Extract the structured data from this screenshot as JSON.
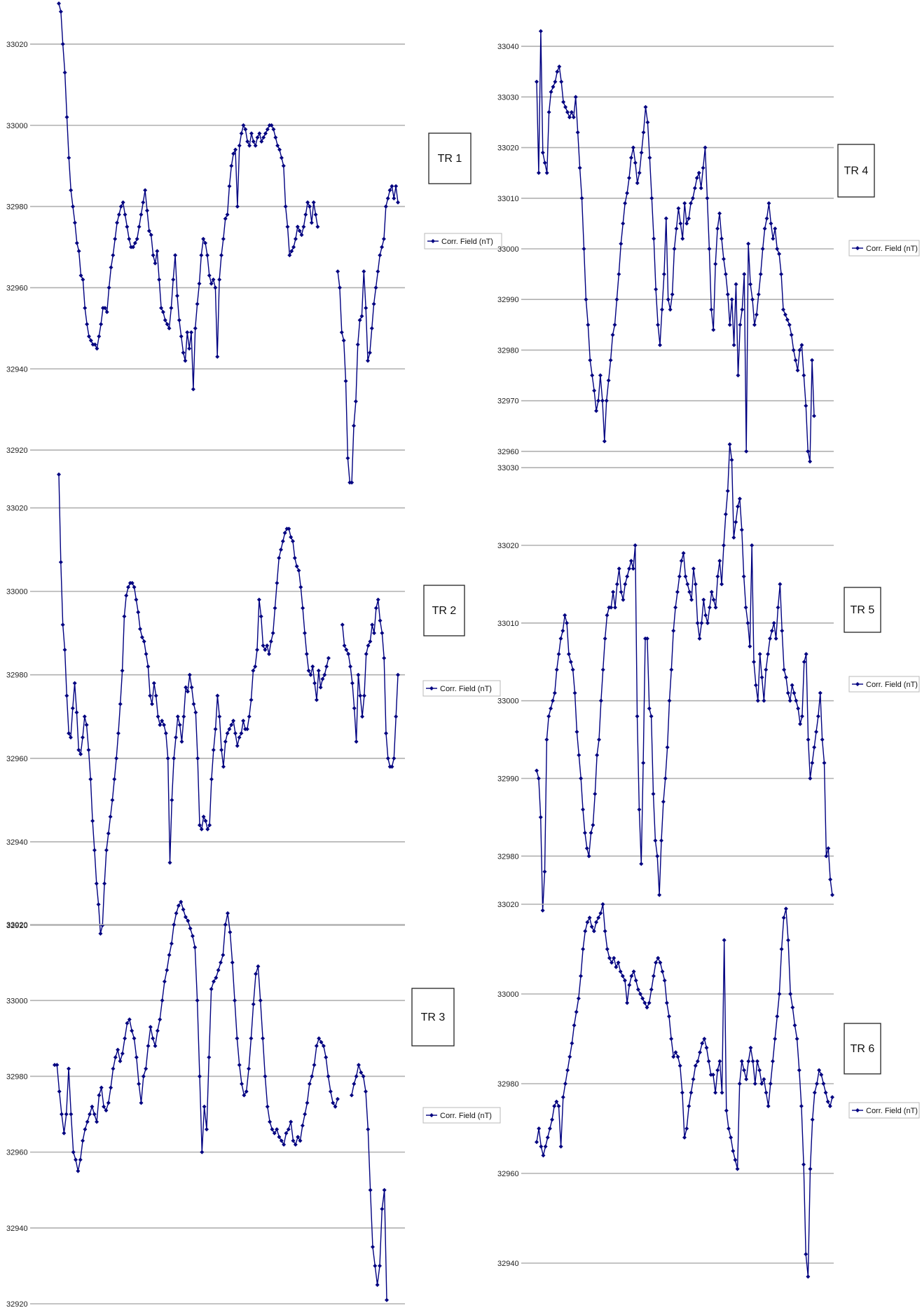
{
  "colors": {
    "series": "#000080",
    "grid": "#b0b0b0"
  },
  "chart_data": [
    {
      "type": "line",
      "title": "TR 1",
      "legend": "Corr. Field (nT)",
      "grid": true,
      "legend_placement": "right",
      "ylim": [
        32910,
        33030
      ],
      "yticks": [
        32920,
        32940,
        32960,
        32980,
        33000,
        33020
      ],
      "series": [
        {
          "name": "Corr. Field (nT)",
          "values": [
            33030,
            33028,
            33020,
            33013,
            33002,
            32992,
            32984,
            32980,
            32976,
            32971,
            32969,
            32963,
            32962,
            32955,
            32951,
            32948,
            32947,
            32946,
            32946,
            32945,
            32948,
            32951,
            32955,
            32955,
            32954,
            32960,
            32965,
            32968,
            32972,
            32976,
            32978,
            32980,
            32981,
            32978,
            32975,
            32972,
            32970,
            32970,
            32971,
            32972,
            32975,
            32978,
            32981,
            32984,
            32979,
            32974,
            32973,
            32968,
            32966,
            32969,
            32962,
            32955,
            32954,
            32952,
            32951,
            32950,
            32955,
            32962,
            32968,
            32958,
            32952,
            32948,
            32944,
            32942,
            32949,
            32945,
            32949,
            32935,
            32950,
            32956,
            32961,
            32968,
            32972,
            32971,
            32968,
            32963,
            32961,
            32962,
            32960,
            32943,
            32962,
            32968,
            32972,
            32977,
            32978,
            32985,
            32990,
            32993,
            32994,
            32980,
            32995,
            32998,
            33000,
            32999,
            32996,
            32995,
            32998,
            32996,
            32995,
            32997,
            32998,
            32996,
            32997,
            32998,
            32999,
            33000,
            33000,
            32999,
            32997,
            32995,
            32994,
            32992,
            32990,
            32980,
            32975,
            32968,
            32969,
            32970,
            32972,
            32975,
            32974,
            32973,
            32975,
            32978,
            32981,
            32980,
            32976,
            32981,
            32978,
            32975,
            null,
            null,
            null,
            null,
            null,
            null,
            null,
            null,
            null,
            32964,
            32960,
            32949,
            32947,
            32937,
            32918,
            32912,
            32912,
            32926,
            32932,
            32946,
            32952,
            32953,
            32964,
            32955,
            32942,
            32944,
            32950,
            32956,
            32960,
            32964,
            32968,
            32970,
            32972,
            32980,
            32982,
            32984,
            32985,
            32982,
            32985,
            32981
          ]
        }
      ]
    },
    {
      "type": "line",
      "title": "TR 2",
      "legend": "Corr. Field (nT)",
      "grid": true,
      "legend_placement": "right",
      "ylim": [
        32920,
        33030
      ],
      "yticks": [
        32920,
        32940,
        32960,
        32980,
        33000,
        33020
      ],
      "series": [
        {
          "name": "Corr. Field (nT)",
          "values": [
            33028,
            33007,
            32992,
            32986,
            32975,
            32966,
            32965,
            32972,
            32978,
            32971,
            32962,
            32961,
            32965,
            32970,
            32968,
            32962,
            32955,
            32945,
            32938,
            32930,
            32925,
            32918,
            32920,
            32930,
            32938,
            32942,
            32946,
            32950,
            32955,
            32960,
            32966,
            32973,
            32981,
            32994,
            32999,
            33001,
            33002,
            33002,
            33001,
            32998,
            32995,
            32991,
            32989,
            32988,
            32985,
            32982,
            32975,
            32973,
            32978,
            32975,
            32970,
            32968,
            32969,
            32968,
            32966,
            32960,
            32935,
            32950,
            32960,
            32965,
            32970,
            32968,
            32964,
            32970,
            32977,
            32976,
            32980,
            32977,
            32973,
            32971,
            32960,
            32944,
            32943,
            32946,
            32945,
            32943,
            32944,
            32955,
            32962,
            32967,
            32975,
            32970,
            32962,
            32958,
            32964,
            32966,
            32967,
            32968,
            32969,
            32966,
            32963,
            32965,
            32966,
            32969,
            32967,
            32967,
            32970,
            32974,
            32981,
            32982,
            32986,
            32998,
            32994,
            32987,
            32986,
            32987,
            32985,
            32988,
            32990,
            32996,
            33002,
            33008,
            33010,
            33012,
            33014,
            33015,
            33015,
            33013,
            33012,
            33008,
            33006,
            33005,
            33001,
            32996,
            32990,
            32985,
            32981,
            32980,
            32982,
            32978,
            32974,
            32981,
            32977,
            32979,
            32980,
            32982,
            32984,
            null,
            null,
            null,
            null,
            null,
            null,
            32992,
            32987,
            32986,
            32985,
            32982,
            32978,
            32972,
            32964,
            32980,
            32975,
            32970,
            32975,
            32985,
            32987,
            32988,
            32992,
            32990,
            32996,
            32998,
            32993,
            32990,
            32984,
            32966,
            32960,
            32958,
            32958,
            32960,
            32970,
            32980
          ]
        }
      ]
    },
    {
      "type": "line",
      "title": "TR 3",
      "legend": "Corr. Field (nT)",
      "grid": true,
      "legend_placement": "right",
      "ylim": [
        32920,
        33030
      ],
      "yticks": [
        32920,
        32940,
        32960,
        32980,
        33000,
        33020
      ],
      "series": [
        {
          "name": "Corr. Field (nT)",
          "values": [
            32983,
            32983,
            32976,
            32970,
            32965,
            32970,
            32982,
            32970,
            32960,
            32958,
            32955,
            32958,
            32963,
            32966,
            32968,
            32970,
            32972,
            32970,
            32968,
            32975,
            32977,
            32972,
            32971,
            32973,
            32977,
            32982,
            32985,
            32987,
            32984,
            32986,
            32990,
            32994,
            32995,
            32992,
            32990,
            32985,
            32978,
            32973,
            32980,
            32982,
            32988,
            32993,
            32990,
            32988,
            32992,
            32995,
            33000,
            33005,
            33008,
            33012,
            33015,
            33020,
            33023,
            33025,
            33026,
            33024,
            33022,
            33021,
            33019,
            33017,
            33014,
            33000,
            32980,
            32960,
            32972,
            32966,
            32985,
            33003,
            33005,
            33006,
            33008,
            33010,
            33012,
            33020,
            33023,
            33018,
            33010,
            33000,
            32990,
            32983,
            32978,
            32975,
            32976,
            32982,
            32990,
            32999,
            33007,
            33009,
            33000,
            32990,
            32980,
            32972,
            32968,
            32966,
            32965,
            32966,
            32964,
            32963,
            32962,
            32965,
            32966,
            32968,
            32963,
            32962,
            32964,
            32963,
            32967,
            32970,
            32973,
            32978,
            32980,
            32983,
            32988,
            32990,
            32989,
            32988,
            32985,
            32980,
            32976,
            32973,
            32972,
            32974,
            null,
            null,
            null,
            null,
            null,
            32975,
            32978,
            32980,
            32983,
            32981,
            32980,
            32976,
            32966,
            32950,
            32935,
            32930,
            32925,
            32930,
            32945,
            32950,
            32921
          ]
        }
      ]
    },
    {
      "type": "line",
      "title": "TR 4",
      "legend": "Corr. Field (nT)",
      "grid": true,
      "legend_placement": "right",
      "ylim": [
        32955,
        33045
      ],
      "yticks": [
        32960,
        32970,
        32980,
        32990,
        33000,
        33010,
        33020,
        33030,
        33040
      ],
      "series": [
        {
          "name": "Corr. Field (nT)",
          "values": [
            33033,
            33015,
            33043,
            33019,
            33017,
            33015,
            33027,
            33031,
            33032,
            33033,
            33035,
            33036,
            33033,
            33029,
            33028,
            33027,
            33026,
            33027,
            33026,
            33030,
            33023,
            33016,
            33010,
            33000,
            32990,
            32985,
            32978,
            32975,
            32972,
            32968,
            32970,
            32975,
            32970,
            32962,
            32970,
            32974,
            32978,
            32983,
            32985,
            32990,
            32995,
            33001,
            33005,
            33009,
            33011,
            33014,
            33018,
            33020,
            33017,
            33013,
            33015,
            33019,
            33023,
            33028,
            33025,
            33018,
            33010,
            33002,
            32992,
            32985,
            32981,
            32988,
            32995,
            33006,
            32990,
            32988,
            32991,
            33000,
            33004,
            33008,
            33005,
            33002,
            33009,
            33005,
            33006,
            33009,
            33010,
            33012,
            33014,
            33015,
            33012,
            33016,
            33020,
            33010,
            33000,
            32988,
            32984,
            32997,
            33004,
            33007,
            33002,
            32998,
            32995,
            32991,
            32985,
            32990,
            32981,
            32993,
            32975,
            32985,
            32988,
            32995,
            32960,
            33001,
            32993,
            32990,
            32985,
            32987,
            32991,
            32995,
            33000,
            33004,
            33006,
            33009,
            33005,
            33002,
            33004,
            33000,
            32999,
            32995,
            32988,
            32987,
            32986,
            32985,
            32983,
            32980,
            32978,
            32976,
            32980,
            32981,
            32975,
            32969,
            32960,
            32958,
            32978,
            32967
          ]
        }
      ]
    },
    {
      "type": "line",
      "title": "TR 5",
      "legend": "Corr. Field (nT)",
      "grid": true,
      "legend_placement": "right",
      "ylim": [
        32972,
        33032
      ],
      "yticks": [
        32980,
        32990,
        33000,
        33010,
        33020,
        33030
      ],
      "series": [
        {
          "name": "Corr. Field (nT)",
          "values": [
            32991,
            32990,
            32985,
            32973,
            32978,
            32995,
            32998,
            32999,
            33000,
            33001,
            33004,
            33006,
            33008,
            33009,
            33011,
            33010,
            33006,
            33005,
            33004,
            33001,
            32996,
            32993,
            32990,
            32986,
            32983,
            32981,
            32980,
            32983,
            32984,
            32988,
            32993,
            32995,
            33000,
            33004,
            33008,
            33011,
            33012,
            33012,
            33014,
            33012,
            33015,
            33017,
            33014,
            33013,
            33015,
            33016,
            33017,
            33018,
            33017,
            33020,
            32998,
            32986,
            32979,
            32992,
            33008,
            33008,
            32999,
            32998,
            32988,
            32982,
            32980,
            32975,
            32982,
            32987,
            32990,
            32994,
            33000,
            33004,
            33009,
            33012,
            33014,
            33016,
            33018,
            33019,
            33016,
            33015,
            33014,
            33013,
            33017,
            33015,
            33010,
            33008,
            33010,
            33013,
            33011,
            33010,
            33012,
            33014,
            33013,
            33012,
            33016,
            33018,
            33015,
            33020,
            33024,
            33027,
            33033,
            33031,
            33021,
            33023,
            33025,
            33026,
            33022,
            33016,
            33012,
            33010,
            33007,
            33020,
            33005,
            33002,
            33000,
            33006,
            33003,
            33000,
            33004,
            33006,
            33008,
            33009,
            33010,
            33008,
            33012,
            33015,
            33009,
            33004,
            33003,
            33001,
            33000,
            33002,
            33001,
            33000,
            32999,
            32997,
            32998,
            33005,
            33006,
            32995,
            32990,
            32992,
            32994,
            32996,
            32998,
            33001,
            32995,
            32992,
            32980,
            32981,
            32977,
            32975
          ]
        }
      ]
    },
    {
      "type": "line",
      "title": "TR 6",
      "legend": "Corr. Field (nT)",
      "grid": true,
      "legend_placement": "right",
      "ylim": [
        32930,
        33025
      ],
      "yticks": [
        32940,
        32960,
        32980,
        33000,
        33020
      ],
      "series": [
        {
          "name": "Corr. Field (nT)",
          "values": [
            32967,
            32970,
            32966,
            32964,
            32966,
            32968,
            32970,
            32972,
            32975,
            32976,
            32975,
            32966,
            32977,
            32980,
            32983,
            32986,
            32989,
            32993,
            32996,
            32999,
            33004,
            33010,
            33014,
            33016,
            33017,
            33015,
            33014,
            33016,
            33017,
            33018,
            33020,
            33014,
            33010,
            33008,
            33007,
            33008,
            33006,
            33007,
            33005,
            33004,
            33003,
            32998,
            33002,
            33004,
            33005,
            33003,
            33001,
            33000,
            32999,
            32998,
            32997,
            32998,
            33001,
            33004,
            33007,
            33008,
            33007,
            33005,
            33003,
            32998,
            32995,
            32990,
            32986,
            32987,
            32986,
            32984,
            32978,
            32968,
            32970,
            32975,
            32978,
            32981,
            32984,
            32985,
            32987,
            32989,
            32990,
            32988,
            32985,
            32982,
            32982,
            32978,
            32983,
            32985,
            32978,
            33012,
            32974,
            32970,
            32968,
            32965,
            32963,
            32961,
            32980,
            32985,
            32983,
            32981,
            32985,
            32988,
            32985,
            32980,
            32985,
            32983,
            32980,
            32981,
            32978,
            32975,
            32980,
            32985,
            32990,
            32995,
            33000,
            33010,
            33017,
            33019,
            33012,
            33000,
            32997,
            32993,
            32990,
            32983,
            32975,
            32962,
            32942,
            32937,
            32961,
            32972,
            32978,
            32980,
            32983,
            32982,
            32980,
            32978,
            32976,
            32975,
            32977
          ]
        }
      ]
    }
  ]
}
